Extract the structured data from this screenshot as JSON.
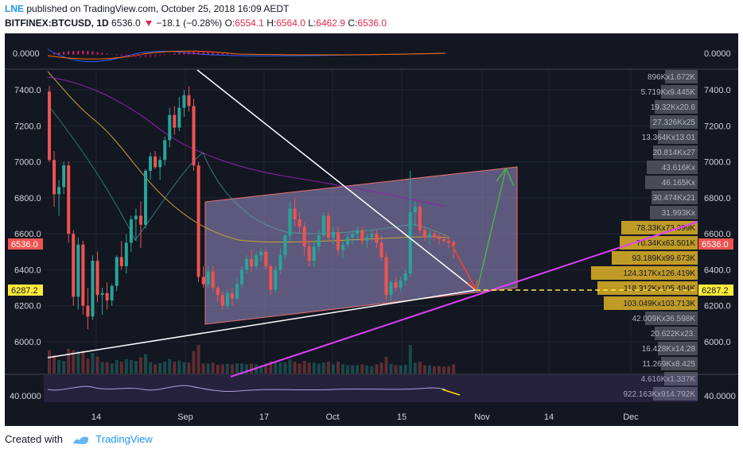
{
  "header": {
    "user": "LNE",
    "published_text": "published on TradingView.com, October 25, 2018 16:09 AEDT",
    "symbol": "BITFINEX:BTCUSD, 1D",
    "last": "6536.0",
    "change": "−18.1 (−0.28%)",
    "o_label": "O:",
    "o_value": "6554.1",
    "h_label": "H:",
    "h_value": "6564.0",
    "l_label": "L:",
    "l_value": "6462.9",
    "c_label": "C:",
    "c_value": "6536.0"
  },
  "footer": {
    "created_with": "Created with",
    "brand": "TradingView"
  },
  "colors": {
    "up": "#26a69a",
    "down": "#ef5350",
    "background": "#131722",
    "trend": "#e91e63",
    "accent": "#2196f3"
  },
  "chart_data": {
    "type": "candlestick",
    "y_axis": {
      "ticks": [
        "7400.0",
        "7200.0",
        "7000.0",
        "6800.0",
        "6600.0",
        "6400.0",
        "6200.0",
        "6000.0"
      ],
      "range": [
        5900,
        7550
      ]
    },
    "x_axis": {
      "ticks": [
        "14",
        "Sep",
        "17",
        "Oct",
        "15",
        "Nov",
        "14",
        "Dec"
      ]
    },
    "price_labels": {
      "current": "6536.0",
      "level": "6287.2"
    },
    "macd_label": "0.0000",
    "rsi_label": "40.0000",
    "volume_profile": [
      "896Kx1.672K",
      "5.719Kx9.445K",
      "19.32Kx20.6",
      "27.326Kx25",
      "13.364Kx13.01",
      "20.814Kx27",
      "43.616Kx",
      "46.165Kx",
      "30.474Kx21",
      "31.993Kx",
      "78.33Kx73.399K",
      "70.34Kx63.501K",
      "93.189Kx99.673K",
      "124.317Kx126.419K",
      "118.312Kx105.494K",
      "103.049Kx103.713K",
      "42.009Kx36.598K",
      "20.622Kx23.",
      "16.428Kx14.28",
      "11.269Kx8.425",
      "4.616Kx1.337K",
      "922.163Kx914.792K"
    ],
    "candles": [
      [
        7390,
        7420,
        7000,
        7010
      ],
      [
        7010,
        7060,
        6750,
        6820
      ],
      [
        6820,
        6900,
        6700,
        6860
      ],
      [
        6860,
        7000,
        6820,
        6980
      ],
      [
        6980,
        7000,
        6550,
        6600
      ],
      [
        6600,
        6620,
        6200,
        6250
      ],
      [
        6250,
        6580,
        6180,
        6540
      ],
      [
        6540,
        6560,
        6150,
        6200
      ],
      [
        6200,
        6300,
        6070,
        6140
      ],
      [
        6140,
        6480,
        6120,
        6450
      ],
      [
        6450,
        6500,
        6220,
        6260
      ],
      [
        6260,
        6300,
        6150,
        6270
      ],
      [
        6270,
        6330,
        6180,
        6230
      ],
      [
        6230,
        6320,
        6200,
        6310
      ],
      [
        6310,
        6480,
        6280,
        6470
      ],
      [
        6470,
        6560,
        6400,
        6420
      ],
      [
        6420,
        6600,
        6380,
        6550
      ],
      [
        6550,
        6700,
        6500,
        6680
      ],
      [
        6680,
        6740,
        6560,
        6700
      ],
      [
        6700,
        6780,
        6520,
        6650
      ],
      [
        6650,
        6960,
        6630,
        6950
      ],
      [
        6950,
        7050,
        6900,
        7030
      ],
      [
        7030,
        7060,
        6960,
        6970
      ],
      [
        6970,
        7030,
        6900,
        7010
      ],
      [
        7010,
        7140,
        6980,
        7120
      ],
      [
        7120,
        7300,
        7080,
        7260
      ],
      [
        7260,
        7310,
        7150,
        7190
      ],
      [
        7190,
        7360,
        7170,
        7300
      ],
      [
        7300,
        7400,
        7250,
        7370
      ],
      [
        7370,
        7420,
        7280,
        7310
      ],
      [
        7310,
        7350,
        6950,
        6980
      ],
      [
        6980,
        7000,
        6330,
        6360
      ],
      [
        6360,
        6420,
        6300,
        6320
      ],
      [
        6320,
        6420,
        6300,
        6390
      ],
      [
        6390,
        6420,
        6280,
        6300
      ],
      [
        6300,
        6310,
        6220,
        6260
      ],
      [
        6260,
        6280,
        6180,
        6200
      ],
      [
        6200,
        6290,
        6180,
        6270
      ],
      [
        6270,
        6300,
        6200,
        6240
      ],
      [
        6240,
        6350,
        6230,
        6320
      ],
      [
        6320,
        6420,
        6300,
        6400
      ],
      [
        6400,
        6480,
        6380,
        6460
      ],
      [
        6460,
        6510,
        6390,
        6420
      ],
      [
        6420,
        6500,
        6400,
        6480
      ],
      [
        6480,
        6520,
        6440,
        6500
      ],
      [
        6500,
        6520,
        6400,
        6420
      ],
      [
        6420,
        6430,
        6260,
        6290
      ],
      [
        6290,
        6420,
        6270,
        6400
      ],
      [
        6400,
        6520,
        6380,
        6480
      ],
      [
        6480,
        6600,
        6460,
        6590
      ],
      [
        6590,
        6780,
        6560,
        6740
      ],
      [
        6740,
        6800,
        6640,
        6680
      ],
      [
        6680,
        6720,
        6600,
        6640
      ],
      [
        6640,
        6660,
        6480,
        6530
      ],
      [
        6530,
        6560,
        6420,
        6450
      ],
      [
        6450,
        6560,
        6420,
        6530
      ],
      [
        6530,
        6620,
        6500,
        6590
      ],
      [
        6590,
        6720,
        6580,
        6700
      ],
      [
        6700,
        6720,
        6560,
        6580
      ],
      [
        6580,
        6640,
        6540,
        6610
      ],
      [
        6610,
        6640,
        6480,
        6510
      ],
      [
        6510,
        6560,
        6460,
        6540
      ],
      [
        6540,
        6600,
        6520,
        6580
      ],
      [
        6580,
        6620,
        6540,
        6600
      ],
      [
        6600,
        6640,
        6560,
        6620
      ],
      [
        6620,
        6640,
        6540,
        6560
      ],
      [
        6560,
        6600,
        6520,
        6580
      ],
      [
        6580,
        6620,
        6560,
        6600
      ],
      [
        6600,
        6620,
        6520,
        6550
      ],
      [
        6550,
        6590,
        6450,
        6470
      ],
      [
        6470,
        6500,
        6230,
        6260
      ],
      [
        6260,
        6340,
        6230,
        6330
      ],
      [
        6330,
        6360,
        6280,
        6300
      ],
      [
        6300,
        6360,
        6280,
        6340
      ],
      [
        6340,
        6400,
        6310,
        6380
      ],
      [
        6380,
        6950,
        6360,
        6720
      ],
      [
        6720,
        6780,
        6640,
        6750
      ],
      [
        6750,
        6760,
        6600,
        6620
      ],
      [
        6620,
        6640,
        6560,
        6580
      ],
      [
        6580,
        6620,
        6540,
        6600
      ],
      [
        6600,
        6620,
        6560,
        6580
      ],
      [
        6580,
        6600,
        6540,
        6570
      ],
      [
        6570,
        6600,
        6550,
        6560
      ],
      [
        6560,
        6580,
        6520,
        6550
      ],
      [
        6554,
        6564,
        6463,
        6536
      ]
    ]
  }
}
